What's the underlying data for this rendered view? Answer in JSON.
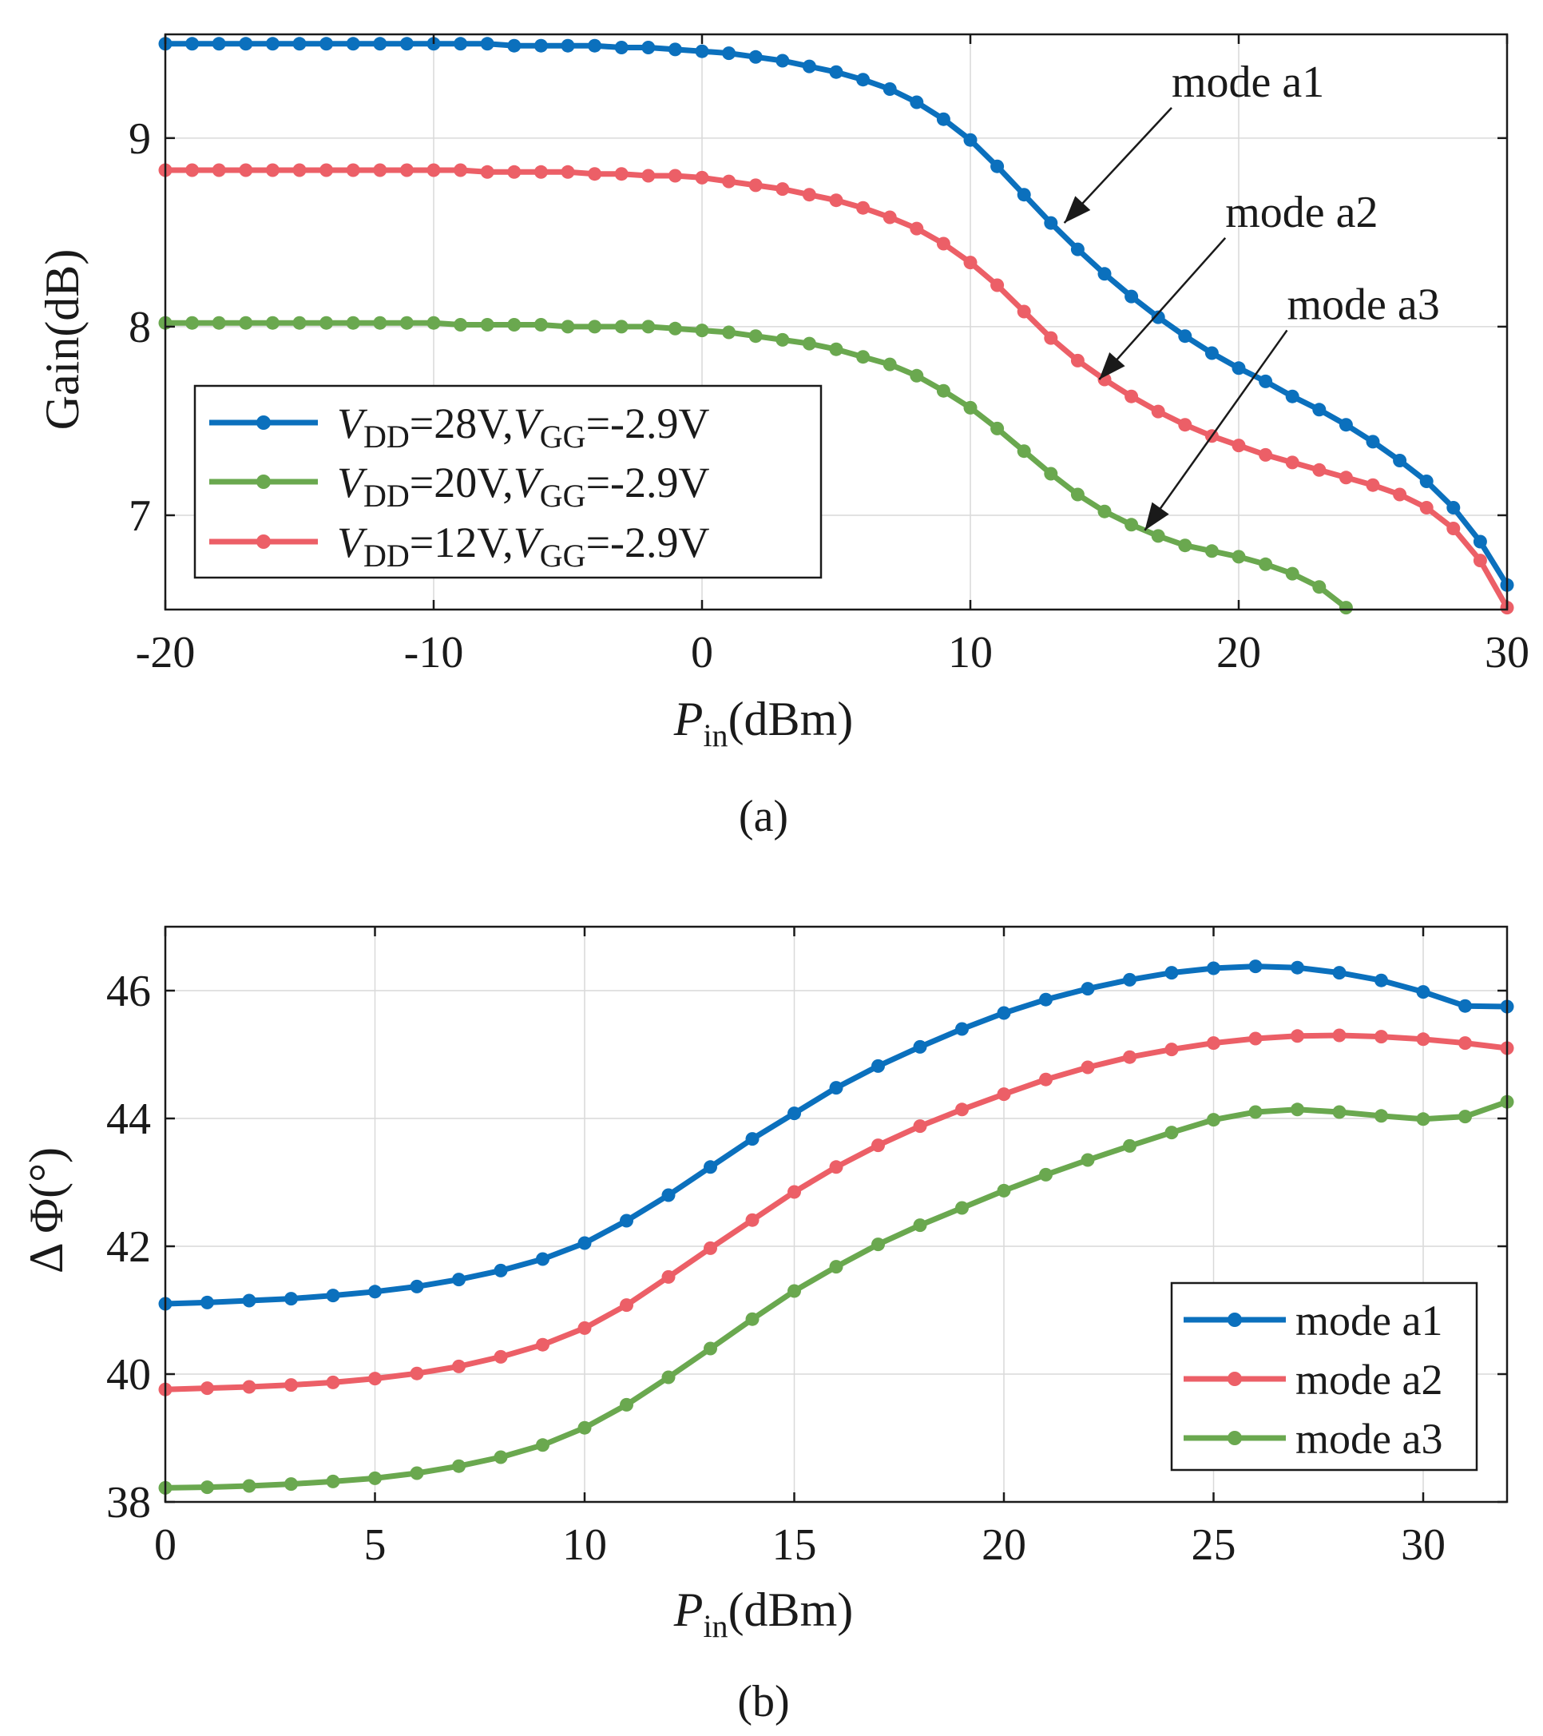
{
  "chart_data": [
    {
      "type": "line",
      "panel": "(a)",
      "xlabel": {
        "main": "P",
        "sub": "in",
        "unit": "(dBm)"
      },
      "ylabel": "Gain(dB)",
      "xlim": [
        -20,
        30
      ],
      "ylim": [
        6.5,
        9.55
      ],
      "xticks": [
        -20,
        -10,
        0,
        10,
        20,
        30
      ],
      "yticks": [
        7,
        8,
        9
      ],
      "grid": true,
      "legend_position": "lower-left",
      "series": [
        {
          "name": "VDD=28V,VGG=-2.9V",
          "legend": {
            "v1": "V",
            "s1": "DD",
            "mid": "=28V,",
            "v2": "V",
            "s2": "GG",
            "end": "=-2.9V"
          },
          "color": "#0b70bd",
          "x": [
            -20,
            -19,
            -18,
            -17,
            -16,
            -15,
            -14,
            -13,
            -12,
            -11,
            -10,
            -9,
            -8,
            -7,
            -6,
            -5,
            -4,
            -3,
            -2,
            -1,
            0,
            1,
            2,
            3,
            4,
            5,
            6,
            7,
            8,
            9,
            10,
            11,
            12,
            13,
            14,
            15,
            16,
            17,
            18,
            19,
            20,
            21,
            22,
            23,
            24,
            25,
            26,
            27,
            28,
            29,
            30
          ],
          "y": [
            9.5,
            9.5,
            9.5,
            9.5,
            9.5,
            9.5,
            9.5,
            9.5,
            9.5,
            9.5,
            9.5,
            9.5,
            9.5,
            9.49,
            9.49,
            9.49,
            9.49,
            9.48,
            9.48,
            9.47,
            9.46,
            9.45,
            9.43,
            9.41,
            9.38,
            9.35,
            9.31,
            9.26,
            9.19,
            9.1,
            8.99,
            8.85,
            8.7,
            8.55,
            8.41,
            8.28,
            8.16,
            8.05,
            7.95,
            7.86,
            7.78,
            7.71,
            7.63,
            7.56,
            7.48,
            7.39,
            7.29,
            7.18,
            7.04,
            6.86,
            6.63
          ]
        },
        {
          "name": "VDD=20V,VGG=-2.9V",
          "legend": {
            "v1": "V",
            "s1": "DD",
            "mid": "=20V,",
            "v2": "V",
            "s2": "GG",
            "end": "=-2.9V"
          },
          "color": "#6aa84f",
          "x": [
            -20,
            -19,
            -18,
            -17,
            -16,
            -15,
            -14,
            -13,
            -12,
            -11,
            -10,
            -9,
            -8,
            -7,
            -6,
            -5,
            -4,
            -3,
            -2,
            -1,
            0,
            1,
            2,
            3,
            4,
            5,
            6,
            7,
            8,
            9,
            10,
            11,
            12,
            13,
            14,
            15,
            16,
            17,
            18,
            19,
            20,
            21,
            22,
            23,
            24
          ],
          "y": [
            8.02,
            8.02,
            8.02,
            8.02,
            8.02,
            8.02,
            8.02,
            8.02,
            8.02,
            8.02,
            8.02,
            8.01,
            8.01,
            8.01,
            8.01,
            8.0,
            8.0,
            8.0,
            8.0,
            7.99,
            7.98,
            7.97,
            7.95,
            7.93,
            7.91,
            7.88,
            7.84,
            7.8,
            7.74,
            7.66,
            7.57,
            7.46,
            7.34,
            7.22,
            7.11,
            7.02,
            6.95,
            6.89,
            6.84,
            6.81,
            6.78,
            6.74,
            6.69,
            6.62,
            6.51
          ]
        },
        {
          "name": "VDD=12V,VGG=-2.9V",
          "legend": {
            "v1": "V",
            "s1": "DD",
            "mid": "=12V,",
            "v2": "V",
            "s2": "GG",
            "end": "=-2.9V"
          },
          "color": "#ec5f67",
          "x": [
            -20,
            -19,
            -18,
            -17,
            -16,
            -15,
            -14,
            -13,
            -12,
            -11,
            -10,
            -9,
            -8,
            -7,
            -6,
            -5,
            -4,
            -3,
            -2,
            -1,
            0,
            1,
            2,
            3,
            4,
            5,
            6,
            7,
            8,
            9,
            10,
            11,
            12,
            13,
            14,
            15,
            16,
            17,
            18,
            19,
            20,
            21,
            22,
            23,
            24,
            25,
            26,
            27,
            28,
            29,
            30
          ],
          "y": [
            8.83,
            8.83,
            8.83,
            8.83,
            8.83,
            8.83,
            8.83,
            8.83,
            8.83,
            8.83,
            8.83,
            8.83,
            8.82,
            8.82,
            8.82,
            8.82,
            8.81,
            8.81,
            8.8,
            8.8,
            8.79,
            8.77,
            8.75,
            8.73,
            8.7,
            8.67,
            8.63,
            8.58,
            8.52,
            8.44,
            8.34,
            8.22,
            8.08,
            7.94,
            7.82,
            7.72,
            7.63,
            7.55,
            7.48,
            7.42,
            7.37,
            7.32,
            7.28,
            7.24,
            7.2,
            7.16,
            7.11,
            7.04,
            6.93,
            6.76,
            6.51
          ]
        }
      ],
      "annotations": [
        {
          "text": "mode a1",
          "x": 17.5,
          "y": 9.22,
          "arrow_to": [
            13.5,
            8.55
          ]
        },
        {
          "text": "mode a2",
          "x": 19.5,
          "y": 8.53,
          "arrow_to": [
            14.8,
            7.72
          ]
        },
        {
          "text": "mode a3",
          "x": 21.8,
          "y": 8.04,
          "arrow_to": [
            16.5,
            6.92
          ]
        }
      ]
    },
    {
      "type": "line",
      "panel": "(b)",
      "xlabel": {
        "main": "P",
        "sub": "in",
        "unit": "(dBm)"
      },
      "ylabel": "Δ Φ(°)",
      "xlim": [
        0,
        32
      ],
      "ylim": [
        38,
        47
      ],
      "xticks": [
        0,
        5,
        10,
        15,
        20,
        25,
        30
      ],
      "yticks": [
        38,
        40,
        42,
        44,
        46
      ],
      "grid": true,
      "legend_position": "lower-right",
      "series": [
        {
          "name": "mode a1",
          "color": "#0b70bd",
          "x": [
            0,
            1,
            2,
            3,
            4,
            5,
            6,
            7,
            8,
            9,
            10,
            11,
            12,
            13,
            14,
            15,
            16,
            17,
            18,
            19,
            20,
            21,
            22,
            23,
            24,
            25,
            26,
            27,
            28,
            29,
            30,
            31,
            32
          ],
          "y": [
            41.1,
            41.12,
            41.15,
            41.18,
            41.23,
            41.29,
            41.37,
            41.48,
            41.62,
            41.8,
            42.05,
            42.4,
            42.8,
            43.24,
            43.68,
            44.08,
            44.48,
            44.82,
            45.12,
            45.4,
            45.65,
            45.86,
            46.03,
            46.17,
            46.28,
            46.35,
            46.38,
            46.36,
            46.28,
            46.16,
            45.98,
            45.76,
            45.75
          ]
        },
        {
          "name": "mode a2",
          "color": "#ec5f67",
          "x": [
            0,
            1,
            2,
            3,
            4,
            5,
            6,
            7,
            8,
            9,
            10,
            11,
            12,
            13,
            14,
            15,
            16,
            17,
            18,
            19,
            20,
            21,
            22,
            23,
            24,
            25,
            26,
            27,
            28,
            29,
            30,
            31,
            32
          ],
          "y": [
            39.76,
            39.78,
            39.8,
            39.83,
            39.87,
            39.93,
            40.01,
            40.12,
            40.27,
            40.46,
            40.72,
            41.08,
            41.52,
            41.97,
            42.41,
            42.85,
            43.24,
            43.58,
            43.88,
            44.14,
            44.38,
            44.61,
            44.8,
            44.96,
            45.08,
            45.18,
            45.25,
            45.29,
            45.3,
            45.28,
            45.24,
            45.18,
            45.1
          ]
        },
        {
          "name": "mode a3",
          "color": "#6aa84f",
          "x": [
            0,
            1,
            2,
            3,
            4,
            5,
            6,
            7,
            8,
            9,
            10,
            11,
            12,
            13,
            14,
            15,
            16,
            17,
            18,
            19,
            20,
            21,
            22,
            23,
            24,
            25,
            26,
            27,
            28,
            29,
            30,
            31,
            32
          ],
          "y": [
            38.22,
            38.23,
            38.25,
            38.28,
            38.32,
            38.37,
            38.45,
            38.56,
            38.7,
            38.89,
            39.16,
            39.52,
            39.95,
            40.4,
            40.86,
            41.3,
            41.68,
            42.03,
            42.33,
            42.6,
            42.87,
            43.12,
            43.35,
            43.57,
            43.78,
            43.98,
            44.1,
            44.14,
            44.1,
            44.04,
            43.99,
            44.03,
            44.26
          ]
        }
      ]
    }
  ]
}
